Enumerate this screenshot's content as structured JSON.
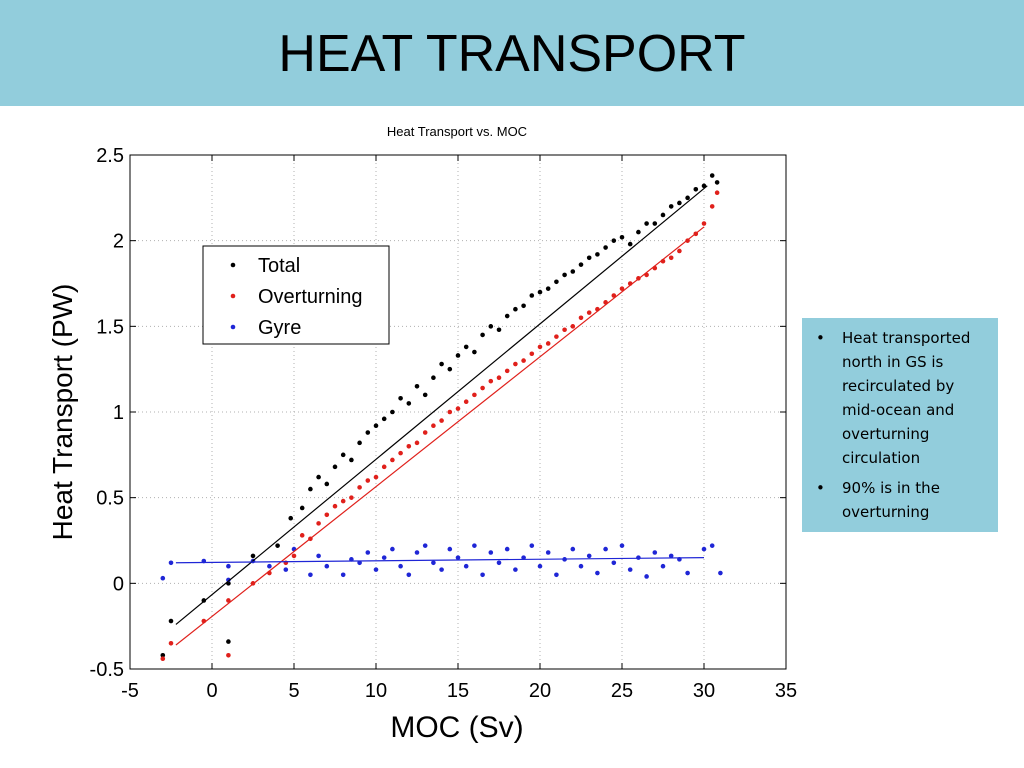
{
  "slide": {
    "title": "HEAT TRANSPORT",
    "accent_color": "#92cddc"
  },
  "bullets": [
    {
      "text": "Heat transported north in GS is recirculated by mid-ocean and overturning circulation"
    },
    {
      "text": "90% is in the overturning"
    }
  ],
  "chart_data": {
    "type": "scatter",
    "title": "Heat Transport vs. MOC",
    "xlabel": "MOC (Sv)",
    "ylabel": "Heat Transport (PW)",
    "xlim": [
      -5,
      35
    ],
    "ylim": [
      -0.5,
      2.5
    ],
    "x_ticks": [
      -5,
      0,
      5,
      10,
      15,
      20,
      25,
      30,
      35
    ],
    "y_ticks": [
      -0.5,
      0,
      0.5,
      1,
      1.5,
      2,
      2.5
    ],
    "x_tick_labels": [
      "-5",
      "0",
      "5",
      "10",
      "15",
      "20",
      "25",
      "30",
      "35"
    ],
    "y_tick_labels": [
      "-0.5",
      "0",
      "0.5",
      "1",
      "1.5",
      "2",
      "2.5"
    ],
    "grid": true,
    "legend_position": "top-left",
    "series": [
      {
        "name": "Total",
        "color": "#000000",
        "fit_line": {
          "x": [
            -2.2,
            30.2
          ],
          "y": [
            -0.24,
            2.32
          ]
        },
        "points": [
          [
            -3,
            -0.42
          ],
          [
            -2.5,
            -0.22
          ],
          [
            -0.5,
            -0.1
          ],
          [
            1,
            -0.34
          ],
          [
            1,
            0.0
          ],
          [
            2.5,
            0.16
          ],
          [
            4,
            0.22
          ],
          [
            4.8,
            0.38
          ],
          [
            5.5,
            0.44
          ],
          [
            6,
            0.55
          ],
          [
            6.5,
            0.62
          ],
          [
            7,
            0.58
          ],
          [
            7.5,
            0.68
          ],
          [
            8,
            0.75
          ],
          [
            8.5,
            0.72
          ],
          [
            9,
            0.82
          ],
          [
            9.5,
            0.88
          ],
          [
            10,
            0.92
          ],
          [
            10.5,
            0.96
          ],
          [
            11,
            1.0
          ],
          [
            11.5,
            1.08
          ],
          [
            12,
            1.05
          ],
          [
            12.5,
            1.15
          ],
          [
            13,
            1.1
          ],
          [
            13.5,
            1.2
          ],
          [
            14,
            1.28
          ],
          [
            14.5,
            1.25
          ],
          [
            15,
            1.33
          ],
          [
            15.5,
            1.38
          ],
          [
            16,
            1.35
          ],
          [
            16.5,
            1.45
          ],
          [
            17,
            1.5
          ],
          [
            17.5,
            1.48
          ],
          [
            18,
            1.56
          ],
          [
            18.5,
            1.6
          ],
          [
            19,
            1.62
          ],
          [
            19.5,
            1.68
          ],
          [
            20,
            1.7
          ],
          [
            20.5,
            1.72
          ],
          [
            21,
            1.76
          ],
          [
            21.5,
            1.8
          ],
          [
            22,
            1.82
          ],
          [
            22.5,
            1.86
          ],
          [
            23,
            1.9
          ],
          [
            23.5,
            1.92
          ],
          [
            24,
            1.96
          ],
          [
            24.5,
            2.0
          ],
          [
            25,
            2.02
          ],
          [
            25.5,
            1.98
          ],
          [
            26,
            2.05
          ],
          [
            26.5,
            2.1
          ],
          [
            27,
            2.1
          ],
          [
            27.5,
            2.15
          ],
          [
            28,
            2.2
          ],
          [
            28.5,
            2.22
          ],
          [
            29,
            2.25
          ],
          [
            29.5,
            2.3
          ],
          [
            30,
            2.32
          ],
          [
            30.5,
            2.38
          ],
          [
            30.8,
            2.34
          ]
        ]
      },
      {
        "name": "Overturning",
        "color": "#e0201b",
        "fit_line": {
          "x": [
            -2.2,
            30.0
          ],
          "y": [
            -0.36,
            2.08
          ]
        },
        "points": [
          [
            -3,
            -0.44
          ],
          [
            -2.5,
            -0.35
          ],
          [
            -0.5,
            -0.22
          ],
          [
            1,
            -0.42
          ],
          [
            1,
            -0.1
          ],
          [
            2.5,
            0.0
          ],
          [
            3.5,
            0.06
          ],
          [
            4.5,
            0.12
          ],
          [
            5,
            0.16
          ],
          [
            5.5,
            0.28
          ],
          [
            6,
            0.26
          ],
          [
            6.5,
            0.35
          ],
          [
            7,
            0.4
          ],
          [
            7.5,
            0.45
          ],
          [
            8,
            0.48
          ],
          [
            8.5,
            0.5
          ],
          [
            9,
            0.56
          ],
          [
            9.5,
            0.6
          ],
          [
            10,
            0.62
          ],
          [
            10.5,
            0.68
          ],
          [
            11,
            0.72
          ],
          [
            11.5,
            0.76
          ],
          [
            12,
            0.8
          ],
          [
            12.5,
            0.82
          ],
          [
            13,
            0.88
          ],
          [
            13.5,
            0.92
          ],
          [
            14,
            0.95
          ],
          [
            14.5,
            1.0
          ],
          [
            15,
            1.02
          ],
          [
            15.5,
            1.06
          ],
          [
            16,
            1.1
          ],
          [
            16.5,
            1.14
          ],
          [
            17,
            1.18
          ],
          [
            17.5,
            1.2
          ],
          [
            18,
            1.24
          ],
          [
            18.5,
            1.28
          ],
          [
            19,
            1.3
          ],
          [
            19.5,
            1.34
          ],
          [
            20,
            1.38
          ],
          [
            20.5,
            1.4
          ],
          [
            21,
            1.44
          ],
          [
            21.5,
            1.48
          ],
          [
            22,
            1.5
          ],
          [
            22.5,
            1.55
          ],
          [
            23,
            1.58
          ],
          [
            23.5,
            1.6
          ],
          [
            24,
            1.64
          ],
          [
            24.5,
            1.68
          ],
          [
            25,
            1.72
          ],
          [
            25.5,
            1.75
          ],
          [
            26,
            1.78
          ],
          [
            26.5,
            1.8
          ],
          [
            27,
            1.84
          ],
          [
            27.5,
            1.88
          ],
          [
            28,
            1.9
          ],
          [
            28.5,
            1.94
          ],
          [
            29,
            2.0
          ],
          [
            29.5,
            2.04
          ],
          [
            30,
            2.1
          ],
          [
            30.5,
            2.2
          ],
          [
            30.8,
            2.28
          ]
        ]
      },
      {
        "name": "Gyre",
        "color": "#1f26d6",
        "fit_line": {
          "x": [
            -2.2,
            30.0
          ],
          "y": [
            0.12,
            0.15
          ]
        },
        "points": [
          [
            -3,
            0.03
          ],
          [
            -2.5,
            0.12
          ],
          [
            -0.5,
            0.13
          ],
          [
            1,
            0.02
          ],
          [
            1,
            0.1
          ],
          [
            2.5,
            0.13
          ],
          [
            3.5,
            0.1
          ],
          [
            4.5,
            0.08
          ],
          [
            5,
            0.2
          ],
          [
            6,
            0.05
          ],
          [
            6.5,
            0.16
          ],
          [
            7,
            0.1
          ],
          [
            8,
            0.05
          ],
          [
            8.5,
            0.14
          ],
          [
            9,
            0.12
          ],
          [
            9.5,
            0.18
          ],
          [
            10,
            0.08
          ],
          [
            10.5,
            0.15
          ],
          [
            11,
            0.2
          ],
          [
            11.5,
            0.1
          ],
          [
            12,
            0.05
          ],
          [
            12.5,
            0.18
          ],
          [
            13,
            0.22
          ],
          [
            13.5,
            0.12
          ],
          [
            14,
            0.08
          ],
          [
            14.5,
            0.2
          ],
          [
            15,
            0.15
          ],
          [
            15.5,
            0.1
          ],
          [
            16,
            0.22
          ],
          [
            16.5,
            0.05
          ],
          [
            17,
            0.18
          ],
          [
            17.5,
            0.12
          ],
          [
            18,
            0.2
          ],
          [
            18.5,
            0.08
          ],
          [
            19,
            0.15
          ],
          [
            19.5,
            0.22
          ],
          [
            20,
            0.1
          ],
          [
            20.5,
            0.18
          ],
          [
            21,
            0.05
          ],
          [
            21.5,
            0.14
          ],
          [
            22,
            0.2
          ],
          [
            22.5,
            0.1
          ],
          [
            23,
            0.16
          ],
          [
            23.5,
            0.06
          ],
          [
            24,
            0.2
          ],
          [
            24.5,
            0.12
          ],
          [
            25,
            0.22
          ],
          [
            25.5,
            0.08
          ],
          [
            26,
            0.15
          ],
          [
            26.5,
            0.04
          ],
          [
            27,
            0.18
          ],
          [
            27.5,
            0.1
          ],
          [
            28,
            0.16
          ],
          [
            28.5,
            0.14
          ],
          [
            29,
            0.06
          ],
          [
            30,
            0.2
          ],
          [
            30.5,
            0.22
          ],
          [
            31,
            0.06
          ]
        ]
      }
    ]
  }
}
